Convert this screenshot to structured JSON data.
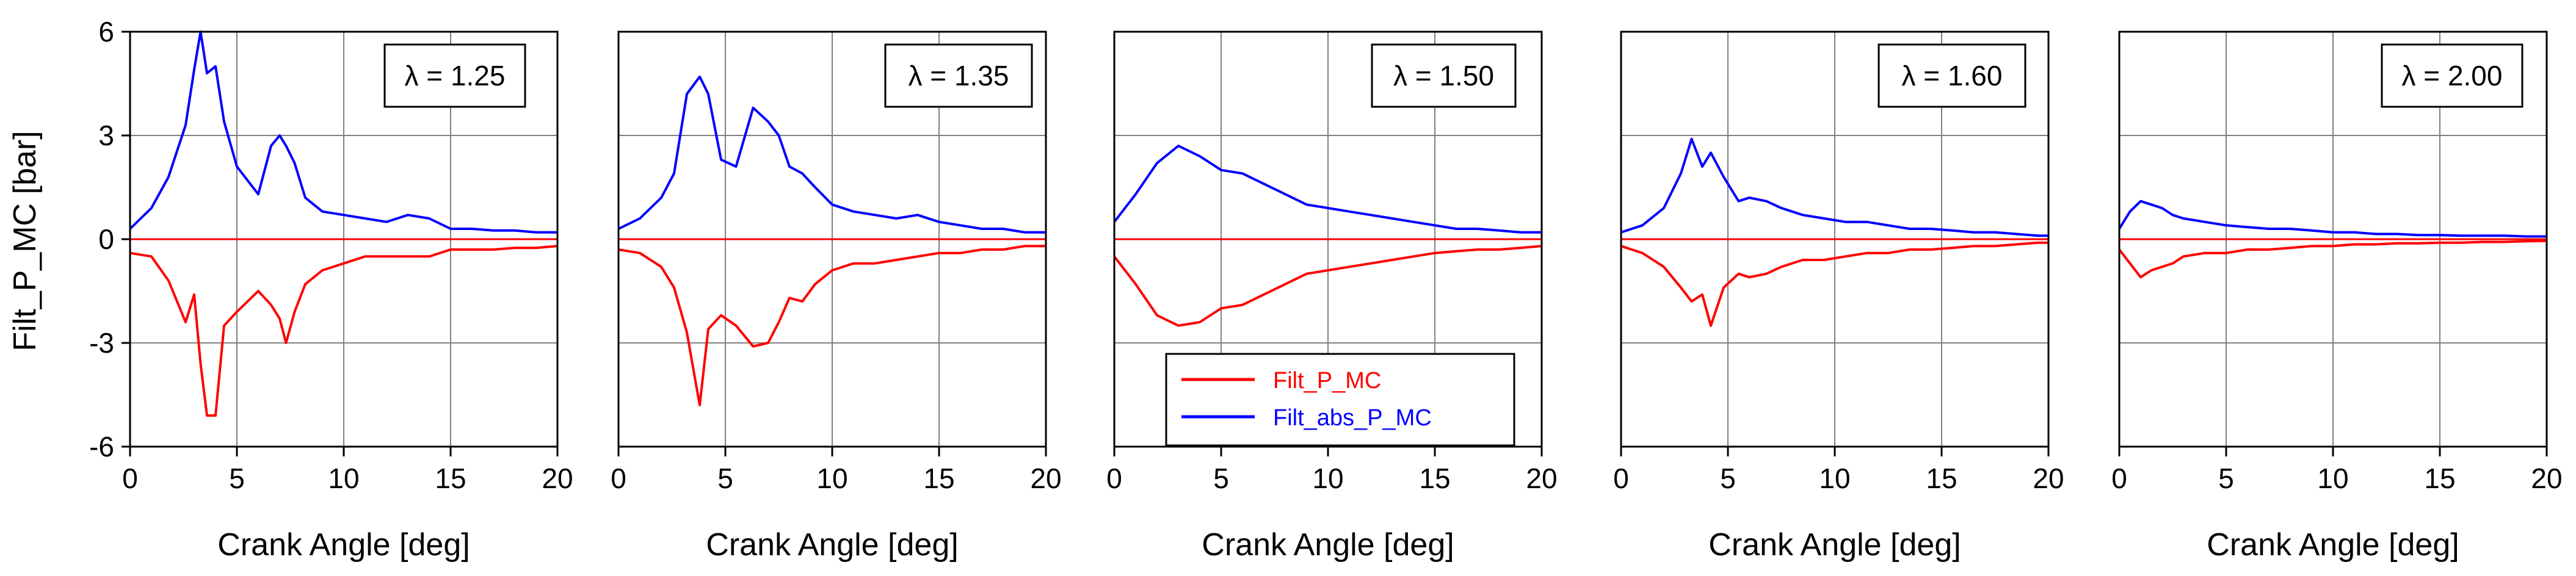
{
  "figure": {
    "ylabel": "Filt_P_MC [bar]",
    "xlabel": "Crank Angle [deg]",
    "legend": {
      "red_label": "Filt_P_MC",
      "blue_label": "Filt_abs_P_MC"
    },
    "colors": {
      "red": "#ff0000",
      "blue": "#0000ff",
      "grid": "#808080",
      "axis": "#000000"
    }
  },
  "chart_data": [
    {
      "type": "line",
      "title": "λ = 1.25",
      "lambda_label": "λ = 1.25",
      "xlabel": "Crank Angle [deg]",
      "ylabel": "Filt_P_MC [bar]",
      "xlim": [
        0,
        20
      ],
      "ylim": [
        -6,
        6
      ],
      "xticks": [
        "0",
        "5",
        "10",
        "15",
        "20"
      ],
      "yticks": [
        "-6",
        "-3",
        "0",
        "3",
        "6"
      ],
      "grid": true,
      "series": [
        {
          "name": "Filt_abs_P_MC",
          "color": "#0000ff",
          "x": [
            0,
            1,
            1.8,
            2.6,
            3.0,
            3.3,
            3.6,
            4.0,
            4.4,
            5.0,
            5.5,
            6.0,
            6.6,
            7.0,
            7.3,
            7.7,
            8.2,
            9.0,
            10.0,
            11.0,
            12.0,
            13.0,
            14.0,
            15.0,
            16.0,
            17.0,
            18.0,
            19.0,
            20.0
          ],
          "y": [
            0.3,
            0.9,
            1.8,
            3.3,
            4.9,
            6.0,
            4.8,
            5.0,
            3.4,
            2.1,
            1.7,
            1.3,
            2.7,
            3.0,
            2.7,
            2.2,
            1.2,
            0.8,
            0.7,
            0.6,
            0.5,
            0.7,
            0.6,
            0.3,
            0.3,
            0.25,
            0.25,
            0.2,
            0.2
          ]
        },
        {
          "name": "Filt_P_MC",
          "color": "#ff0000",
          "x": [
            0,
            1,
            1.8,
            2.6,
            3.0,
            3.3,
            3.6,
            4.0,
            4.4,
            5.0,
            5.5,
            6.0,
            6.6,
            7.0,
            7.3,
            7.7,
            8.2,
            9.0,
            10.0,
            11.0,
            12.0,
            13.0,
            14.0,
            15.0,
            16.0,
            17.0,
            18.0,
            19.0,
            20.0
          ],
          "y": [
            -0.4,
            -0.5,
            -1.2,
            -2.4,
            -1.6,
            -3.6,
            -5.1,
            -5.1,
            -2.5,
            -2.1,
            -1.8,
            -1.5,
            -1.9,
            -2.3,
            -3.0,
            -2.1,
            -1.3,
            -0.9,
            -0.7,
            -0.5,
            -0.5,
            -0.5,
            -0.5,
            -0.3,
            -0.3,
            -0.3,
            -0.25,
            -0.25,
            -0.2
          ]
        }
      ]
    },
    {
      "type": "line",
      "title": "λ = 1.35",
      "lambda_label": "λ = 1.35",
      "xlabel": "Crank Angle [deg]",
      "ylabel": "",
      "xlim": [
        0,
        20
      ],
      "ylim": [
        -6,
        6
      ],
      "xticks": [
        "0",
        "5",
        "10",
        "15",
        "20"
      ],
      "yticks": [
        "-6",
        "-3",
        "0",
        "3",
        "6"
      ],
      "grid": true,
      "series": [
        {
          "name": "Filt_abs_P_MC",
          "color": "#0000ff",
          "x": [
            0,
            1,
            2,
            2.6,
            3.2,
            3.8,
            4.2,
            4.8,
            5.5,
            6.3,
            7.0,
            7.5,
            8.0,
            8.6,
            9.2,
            10.0,
            11.0,
            12.0,
            13.0,
            14.0,
            15.0,
            16.0,
            17.0,
            18.0,
            19.0,
            20.0
          ],
          "y": [
            0.3,
            0.6,
            1.2,
            1.9,
            4.2,
            4.7,
            4.2,
            2.3,
            2.1,
            3.8,
            3.4,
            3.0,
            2.1,
            1.9,
            1.5,
            1.0,
            0.8,
            0.7,
            0.6,
            0.7,
            0.5,
            0.4,
            0.3,
            0.3,
            0.2,
            0.2
          ]
        },
        {
          "name": "Filt_P_MC",
          "color": "#ff0000",
          "x": [
            0,
            1,
            2,
            2.6,
            3.2,
            3.8,
            4.2,
            4.8,
            5.5,
            6.3,
            7.0,
            7.5,
            8.0,
            8.6,
            9.2,
            10.0,
            11.0,
            12.0,
            13.0,
            14.0,
            15.0,
            16.0,
            17.0,
            18.0,
            19.0,
            20.0
          ],
          "y": [
            -0.3,
            -0.4,
            -0.8,
            -1.4,
            -2.7,
            -4.8,
            -2.6,
            -2.2,
            -2.5,
            -3.1,
            -3.0,
            -2.4,
            -1.7,
            -1.8,
            -1.3,
            -0.9,
            -0.7,
            -0.7,
            -0.6,
            -0.5,
            -0.4,
            -0.4,
            -0.3,
            -0.3,
            -0.2,
            -0.2
          ]
        }
      ]
    },
    {
      "type": "line",
      "title": "λ = 1.50",
      "lambda_label": "λ = 1.50",
      "xlabel": "Crank Angle [deg]",
      "ylabel": "",
      "xlim": [
        0,
        20
      ],
      "ylim": [
        -6,
        6
      ],
      "xticks": [
        "0",
        "5",
        "10",
        "15",
        "20"
      ],
      "yticks": [
        "-6",
        "-3",
        "0",
        "3",
        "6"
      ],
      "grid": true,
      "series": [
        {
          "name": "Filt_abs_P_MC",
          "color": "#0000ff",
          "x": [
            0,
            1,
            2,
            3,
            4,
            5,
            6,
            7,
            8,
            9,
            10,
            11,
            12,
            13,
            14,
            15,
            16,
            17,
            18,
            19,
            20
          ],
          "y": [
            0.5,
            1.3,
            2.2,
            2.7,
            2.4,
            2.0,
            1.9,
            1.6,
            1.3,
            1.0,
            0.9,
            0.8,
            0.7,
            0.6,
            0.5,
            0.4,
            0.3,
            0.3,
            0.25,
            0.2,
            0.2
          ]
        },
        {
          "name": "Filt_P_MC",
          "color": "#ff0000",
          "x": [
            0,
            1,
            2,
            3,
            4,
            5,
            6,
            7,
            8,
            9,
            10,
            11,
            12,
            13,
            14,
            15,
            16,
            17,
            18,
            19,
            20
          ],
          "y": [
            -0.5,
            -1.3,
            -2.2,
            -2.5,
            -2.4,
            -2.0,
            -1.9,
            -1.6,
            -1.3,
            -1.0,
            -0.9,
            -0.8,
            -0.7,
            -0.6,
            -0.5,
            -0.4,
            -0.35,
            -0.3,
            -0.3,
            -0.25,
            -0.2
          ]
        }
      ]
    },
    {
      "type": "line",
      "title": "λ = 1.60",
      "lambda_label": "λ = 1.60",
      "xlabel": "Crank Angle [deg]",
      "ylabel": "",
      "xlim": [
        0,
        20
      ],
      "ylim": [
        -6,
        6
      ],
      "xticks": [
        "0",
        "5",
        "10",
        "15",
        "20"
      ],
      "yticks": [
        "-6",
        "-3",
        "0",
        "3",
        "6"
      ],
      "grid": true,
      "series": [
        {
          "name": "Filt_abs_P_MC",
          "color": "#0000ff",
          "x": [
            0,
            1,
            2,
            2.8,
            3.3,
            3.8,
            4.2,
            4.8,
            5.5,
            6.0,
            6.8,
            7.5,
            8.5,
            9.5,
            10.5,
            11.5,
            12.5,
            13.5,
            14.5,
            15.5,
            16.5,
            17.5,
            18.5,
            19.5,
            20.0
          ],
          "y": [
            0.2,
            0.4,
            0.9,
            1.9,
            2.9,
            2.1,
            2.5,
            1.8,
            1.1,
            1.2,
            1.1,
            0.9,
            0.7,
            0.6,
            0.5,
            0.5,
            0.4,
            0.3,
            0.3,
            0.25,
            0.2,
            0.2,
            0.15,
            0.1,
            0.1
          ]
        },
        {
          "name": "Filt_P_MC",
          "color": "#ff0000",
          "x": [
            0,
            1,
            2,
            2.8,
            3.3,
            3.8,
            4.2,
            4.8,
            5.5,
            6.0,
            6.8,
            7.5,
            8.5,
            9.5,
            10.5,
            11.5,
            12.5,
            13.5,
            14.5,
            15.5,
            16.5,
            17.5,
            18.5,
            19.5,
            20.0
          ],
          "y": [
            -0.2,
            -0.4,
            -0.8,
            -1.4,
            -1.8,
            -1.6,
            -2.5,
            -1.4,
            -1.0,
            -1.1,
            -1.0,
            -0.8,
            -0.6,
            -0.6,
            -0.5,
            -0.4,
            -0.4,
            -0.3,
            -0.3,
            -0.25,
            -0.2,
            -0.2,
            -0.15,
            -0.1,
            -0.1
          ]
        }
      ]
    },
    {
      "type": "line",
      "title": "λ = 2.00",
      "lambda_label": "λ = 2.00",
      "xlabel": "Crank Angle [deg]",
      "ylabel": "",
      "xlim": [
        0,
        20
      ],
      "ylim": [
        -6,
        6
      ],
      "xticks": [
        "0",
        "5",
        "10",
        "15",
        "20"
      ],
      "yticks": [
        "-6",
        "-3",
        "0",
        "3",
        "6"
      ],
      "grid": true,
      "series": [
        {
          "name": "Filt_abs_P_MC",
          "color": "#0000ff",
          "x": [
            0,
            0.5,
            1,
            1.5,
            2,
            2.5,
            3,
            4,
            5,
            6,
            7,
            8,
            9,
            10,
            11,
            12,
            13,
            14,
            15,
            16,
            17,
            18,
            19,
            20
          ],
          "y": [
            0.3,
            0.8,
            1.1,
            1.0,
            0.9,
            0.7,
            0.6,
            0.5,
            0.4,
            0.35,
            0.3,
            0.3,
            0.25,
            0.2,
            0.2,
            0.15,
            0.15,
            0.12,
            0.12,
            0.1,
            0.1,
            0.1,
            0.08,
            0.08
          ]
        },
        {
          "name": "Filt_P_MC",
          "color": "#ff0000",
          "x": [
            0,
            0.5,
            1,
            1.5,
            2,
            2.5,
            3,
            4,
            5,
            6,
            7,
            8,
            9,
            10,
            11,
            12,
            13,
            14,
            15,
            16,
            17,
            18,
            19,
            20
          ],
          "y": [
            -0.3,
            -0.7,
            -1.1,
            -0.9,
            -0.8,
            -0.7,
            -0.5,
            -0.4,
            -0.4,
            -0.3,
            -0.3,
            -0.25,
            -0.2,
            -0.2,
            -0.15,
            -0.15,
            -0.12,
            -0.12,
            -0.1,
            -0.1,
            -0.08,
            -0.08,
            -0.06,
            -0.05
          ]
        }
      ]
    }
  ]
}
